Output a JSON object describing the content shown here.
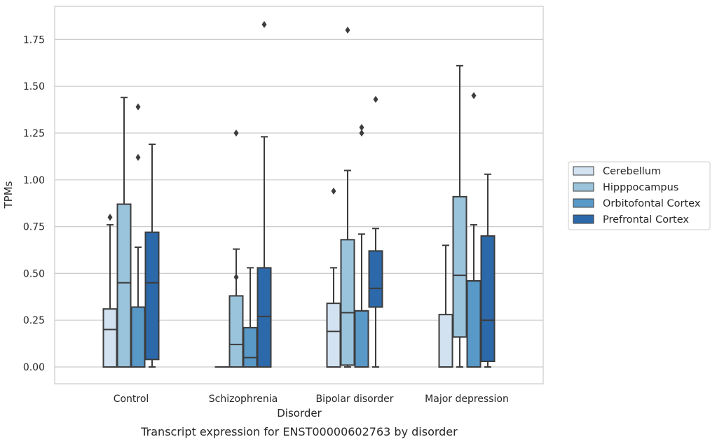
{
  "caption": "Transcript expression for ENST00000602763 by disorder",
  "chart_data": {
    "type": "box",
    "xlabel": "Disorder",
    "ylabel": "TPMs",
    "ylim": [
      -0.09,
      1.93
    ],
    "yticks": [
      "0.00",
      "0.25",
      "0.50",
      "0.75",
      "1.00",
      "1.25",
      "1.50",
      "1.75"
    ],
    "grid": "horizontal",
    "legend_position": "right",
    "categories": [
      "Control",
      "Schizophrenia",
      "Bipolar disorder",
      "Major depression"
    ],
    "series": [
      {
        "name": "Cerebellum",
        "color": "#d2e2f1",
        "boxes": [
          {
            "q1": 0.0,
            "median": 0.2,
            "q3": 0.31,
            "whisker_low": 0.0,
            "whisker_high": 0.76,
            "outliers": [
              0.8
            ]
          },
          {
            "q1": 0.0,
            "median": 0.0,
            "q3": 0.0,
            "whisker_low": 0.0,
            "whisker_high": 0.0,
            "outliers": []
          },
          {
            "q1": 0.0,
            "median": 0.19,
            "q3": 0.34,
            "whisker_low": 0.0,
            "whisker_high": 0.53,
            "outliers": [
              0.94
            ]
          },
          {
            "q1": 0.0,
            "median": 0.0,
            "q3": 0.28,
            "whisker_low": 0.0,
            "whisker_high": 0.65,
            "outliers": []
          }
        ]
      },
      {
        "name": "Hipppocampus",
        "color": "#9ac3dc",
        "boxes": [
          {
            "q1": 0.0,
            "median": 0.45,
            "q3": 0.87,
            "whisker_low": 0.0,
            "whisker_high": 1.44,
            "outliers": []
          },
          {
            "q1": 0.0,
            "median": 0.12,
            "q3": 0.38,
            "whisker_low": 0.0,
            "whisker_high": 0.63,
            "outliers": [
              0.48,
              1.25
            ]
          },
          {
            "q1": 0.01,
            "median": 0.29,
            "q3": 0.68,
            "whisker_low": 0.0,
            "whisker_high": 1.05,
            "outliers": [
              1.8
            ]
          },
          {
            "q1": 0.16,
            "median": 0.49,
            "q3": 0.91,
            "whisker_low": 0.0,
            "whisker_high": 1.61,
            "outliers": []
          }
        ]
      },
      {
        "name": "Orbitofontal Cortex",
        "color": "#5899c8",
        "boxes": [
          {
            "q1": 0.0,
            "median": 0.32,
            "q3": 0.32,
            "whisker_low": 0.0,
            "whisker_high": 0.64,
            "outliers": [
              1.12,
              1.39
            ]
          },
          {
            "q1": 0.0,
            "median": 0.05,
            "q3": 0.21,
            "whisker_low": 0.0,
            "whisker_high": 0.53,
            "outliers": []
          },
          {
            "q1": 0.0,
            "median": 0.3,
            "q3": 0.3,
            "whisker_low": 0.0,
            "whisker_high": 0.71,
            "outliers": [
              1.25,
              1.28
            ]
          },
          {
            "q1": 0.0,
            "median": 0.46,
            "q3": 0.46,
            "whisker_low": 0.0,
            "whisker_high": 0.76,
            "outliers": [
              1.45
            ]
          }
        ]
      },
      {
        "name": "Prefrontal Cortex",
        "color": "#2c69aa",
        "boxes": [
          {
            "q1": 0.04,
            "median": 0.45,
            "q3": 0.72,
            "whisker_low": 0.0,
            "whisker_high": 1.19,
            "outliers": []
          },
          {
            "q1": 0.0,
            "median": 0.27,
            "q3": 0.53,
            "whisker_low": 0.0,
            "whisker_high": 1.23,
            "outliers": [
              1.83
            ]
          },
          {
            "q1": 0.32,
            "median": 0.42,
            "q3": 0.62,
            "whisker_low": 0.0,
            "whisker_high": 0.74,
            "outliers": [
              1.43
            ]
          },
          {
            "q1": 0.03,
            "median": 0.25,
            "q3": 0.7,
            "whisker_low": 0.0,
            "whisker_high": 1.03,
            "outliers": []
          }
        ]
      }
    ]
  }
}
